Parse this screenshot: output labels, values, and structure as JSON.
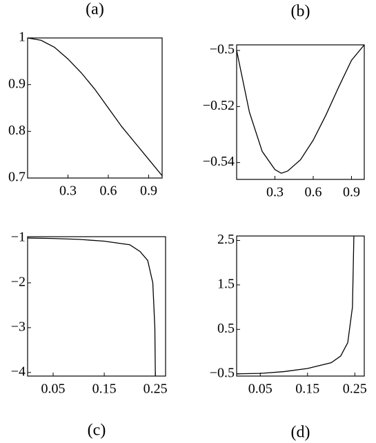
{
  "chart_data": [
    {
      "type": "line",
      "title": "(a)",
      "x": [
        0,
        0.1,
        0.2,
        0.3,
        0.4,
        0.5,
        0.6,
        0.7,
        0.8,
        0.9,
        1.0
      ],
      "series": [
        {
          "color": "#000000",
          "values": [
            1.0,
            0.995,
            0.98,
            0.955,
            0.925,
            0.89,
            0.85,
            0.81,
            0.775,
            0.74,
            0.705
          ]
        }
      ],
      "xlim": [
        0,
        1.0
      ],
      "ylim": [
        0.7,
        1.0
      ],
      "xticks": [
        0.3,
        0.6,
        0.9
      ],
      "yticks": [
        0.7,
        0.8,
        0.9,
        1
      ]
    },
    {
      "type": "line",
      "title": "(b)",
      "x": [
        0,
        0.1,
        0.2,
        0.3,
        0.35,
        0.4,
        0.5,
        0.6,
        0.7,
        0.8,
        0.9,
        1.0
      ],
      "series": [
        {
          "color": "#000000",
          "values": [
            -0.5,
            -0.522,
            -0.536,
            -0.5425,
            -0.5438,
            -0.543,
            -0.539,
            -0.532,
            -0.523,
            -0.513,
            -0.5035,
            -0.498
          ]
        }
      ],
      "xlim": [
        0,
        1.0
      ],
      "ylim": [
        -0.546,
        -0.498
      ],
      "xticks": [
        0.3,
        0.6,
        0.9
      ],
      "yticks": [
        {
          "value": -0.54,
          "label": "−0.54"
        },
        {
          "value": -0.52,
          "label": "−0.52"
        },
        {
          "value": -0.5,
          "label": "−0.5"
        }
      ]
    },
    {
      "type": "line",
      "title": "(c)",
      "x": [
        0,
        0.05,
        0.1,
        0.15,
        0.2,
        0.22,
        0.235,
        0.245,
        0.249,
        0.25
      ],
      "series": [
        {
          "color": "#000000",
          "values": [
            -1.0,
            -1.01,
            -1.03,
            -1.07,
            -1.15,
            -1.3,
            -1.5,
            -2.0,
            -3.0,
            -4.08
          ]
        }
      ],
      "xlim": [
        0,
        0.27
      ],
      "ylim": [
        -4.08,
        -0.97
      ],
      "xticks": [
        0.05,
        0.15,
        0.25
      ],
      "yticks": [
        {
          "value": -4,
          "label": "−4"
        },
        {
          "value": -3,
          "label": "−3"
        },
        {
          "value": -2,
          "label": "−2"
        },
        {
          "value": -1,
          "label": "−1"
        }
      ]
    },
    {
      "type": "line",
      "title": "(d)",
      "x": [
        0,
        0.05,
        0.1,
        0.15,
        0.2,
        0.22,
        0.235,
        0.245,
        0.248
      ],
      "series": [
        {
          "color": "#000000",
          "values": [
            -0.5,
            -0.49,
            -0.45,
            -0.38,
            -0.25,
            -0.1,
            0.2,
            1.0,
            2.6
          ]
        }
      ],
      "xlim": [
        0,
        0.27
      ],
      "ylim": [
        -0.55,
        2.6
      ],
      "xticks": [
        0.05,
        0.15,
        0.25
      ],
      "yticks": [
        {
          "value": -0.5,
          "label": "−0.5"
        },
        0.5,
        1.5,
        2.5
      ]
    }
  ]
}
